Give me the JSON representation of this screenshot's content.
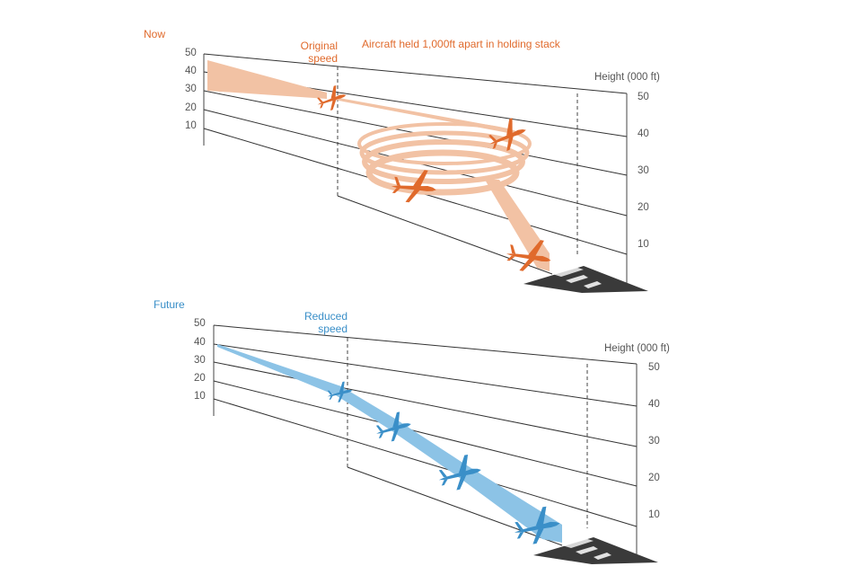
{
  "colors": {
    "now_accent": "#e06a2c",
    "now_trail": "#f2c2a4",
    "future_accent": "#2c86c4",
    "future_trail": "#8cc3e6",
    "grid_line": "#333333",
    "runway": "#3a3a3a",
    "text": "#555555"
  },
  "now": {
    "label": "Now",
    "speed_label_line1": "Original",
    "speed_label_line2": "speed",
    "annotation": "Aircraft held 1,000ft apart in holding stack",
    "height_axis_label": "Height (000 ft)",
    "left_ticks": [
      "50",
      "40",
      "30",
      "20",
      "10"
    ],
    "right_ticks": [
      "50",
      "40",
      "30",
      "20",
      "10"
    ],
    "aircraft_icon": "airplane-icon"
  },
  "future": {
    "label": "Future",
    "speed_label_line1": "Reduced",
    "speed_label_line2": "speed",
    "height_axis_label": "Height (000 ft)",
    "left_ticks": [
      "50",
      "40",
      "30",
      "20",
      "10"
    ],
    "right_ticks": [
      "50",
      "40",
      "30",
      "20",
      "10"
    ],
    "aircraft_icon": "airplane-icon"
  }
}
